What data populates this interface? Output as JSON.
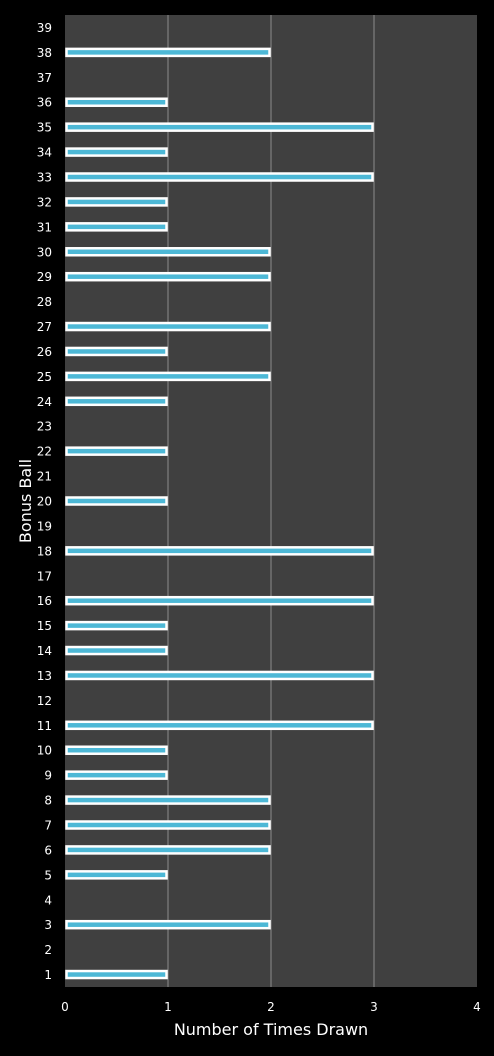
{
  "chart_data": {
    "type": "bar",
    "orientation": "horizontal",
    "xlabel": "Number of Times Drawn",
    "ylabel": "Bonus Ball",
    "xlim": [
      0,
      4
    ],
    "xticks": [
      "0",
      "1",
      "2",
      "3",
      "4"
    ],
    "grid": true,
    "colors": {
      "background": "#000000",
      "plot_area": "#404040",
      "bar_fill": "#4db8d6",
      "bar_border": "#ffffff",
      "gridline": "#8c8c8c",
      "text": "#ffffff"
    },
    "categories": [
      "1",
      "2",
      "3",
      "4",
      "5",
      "6",
      "7",
      "8",
      "9",
      "10",
      "11",
      "12",
      "13",
      "14",
      "15",
      "16",
      "17",
      "18",
      "19",
      "20",
      "21",
      "22",
      "23",
      "24",
      "25",
      "26",
      "27",
      "28",
      "29",
      "30",
      "31",
      "32",
      "33",
      "34",
      "35",
      "36",
      "37",
      "38",
      "39"
    ],
    "values": [
      1,
      0,
      2,
      0,
      1,
      2,
      2,
      2,
      1,
      1,
      3,
      0,
      3,
      1,
      1,
      3,
      0,
      3,
      0,
      1,
      0,
      1,
      0,
      1,
      2,
      1,
      2,
      0,
      2,
      2,
      1,
      1,
      3,
      1,
      3,
      1,
      0,
      2,
      0
    ]
  }
}
